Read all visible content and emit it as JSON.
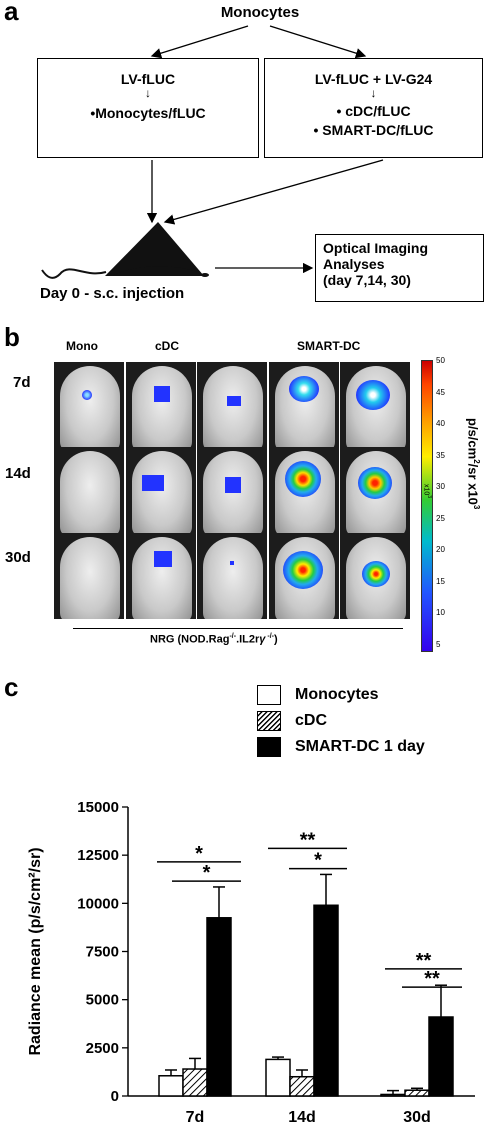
{
  "panel_a": {
    "letter": "a",
    "monocytes": "Monocytes",
    "left_box": {
      "title": "LV-fLUC",
      "arrow": "↓",
      "line1": "•Monocytes/fLUC"
    },
    "right_box": {
      "title": "LV-fLUC + LV-G24",
      "arrow": "↓",
      "line1": "• cDC/fLUC",
      "line2": "• SMART-DC/fLUC"
    },
    "injection": "Day 0 - s.c. injection",
    "analysis_box": {
      "line1": "Optical Imaging",
      "line2": "Analyses",
      "line3": "(day 7,14, 30)"
    }
  },
  "panel_b": {
    "letter": "b",
    "column_headers": [
      "Mono",
      "cDC",
      "SMART-DC"
    ],
    "row_labels": [
      "7d",
      "14d",
      "30d"
    ],
    "strain": "NRG (NOD.Rag",
    "strain_sup1": "-/-",
    "strain_mid": ".IL2r",
    "strain_gamma": "γ",
    "strain_sup2": " -/-",
    "strain_end": ")",
    "colorbar": {
      "ticks": [
        "50",
        "45",
        "40",
        "35",
        "30",
        "25",
        "20",
        "15",
        "10",
        "5"
      ],
      "label_main": "p/s/cm",
      "label_sup": "2",
      "label_rest": "/sr x10",
      "label_sup2": "3",
      "small_mark": "x10",
      "small_mark_sup": "3"
    }
  },
  "panel_c": {
    "letter": "c",
    "legend": [
      "Monocytes",
      "cDC",
      "SMART-DC 1 day"
    ],
    "significance": [
      "*",
      "*",
      "**",
      "*",
      "**",
      "**"
    ]
  },
  "chart_data": {
    "type": "bar",
    "categories": [
      "7d",
      "14d",
      "30d"
    ],
    "series": [
      {
        "name": "Monocytes",
        "values": [
          1050,
          1900,
          80
        ],
        "errors": [
          300,
          120,
          200
        ]
      },
      {
        "name": "cDC",
        "values": [
          1400,
          1000,
          300
        ],
        "errors": [
          550,
          350,
          100
        ]
      },
      {
        "name": "SMART-DC 1 day",
        "values": [
          9250,
          9900,
          4100
        ],
        "errors": [
          1600,
          1600,
          1650
        ]
      }
    ],
    "ylabel": "Radiance mean (p/s/cm²/sr)",
    "ylim": [
      0,
      15000
    ],
    "yticks": [
      "0",
      "2500",
      "5000",
      "7500",
      "10000",
      "12500",
      "15000"
    ],
    "colors": {
      "Monocytes": "#ffffff",
      "cDC": "hatched",
      "SMART-DC 1 day": "#000000"
    }
  }
}
